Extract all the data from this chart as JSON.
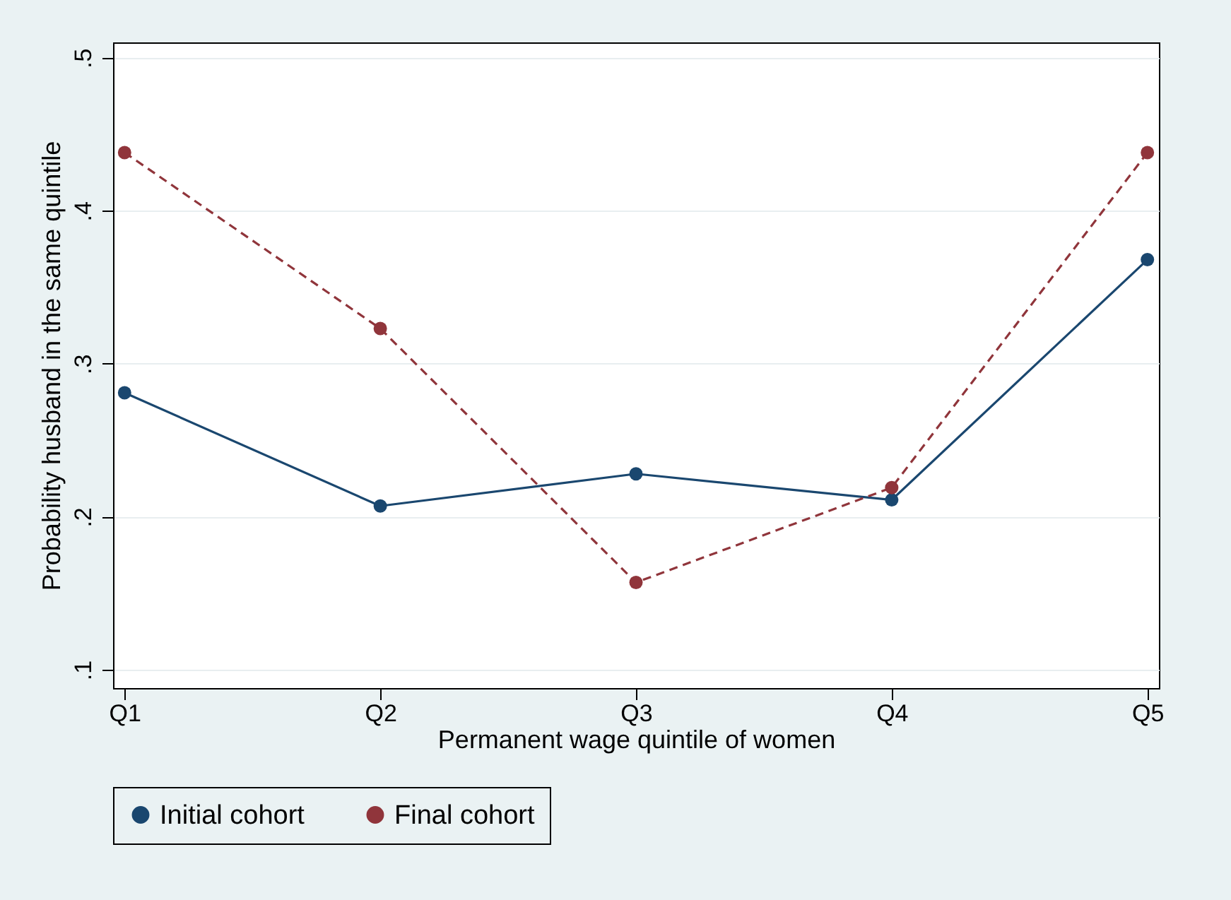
{
  "chart_data": {
    "type": "line",
    "xlabel": "Permanent wage quintile of women",
    "ylabel": "Probability husband in the same quintile",
    "categories": [
      "Q1",
      "Q2",
      "Q3",
      "Q4",
      "Q5"
    ],
    "series": [
      {
        "name": "Initial cohort",
        "color": "#1a476f",
        "values": [
          0.281,
          0.207,
          0.228,
          0.211,
          0.368
        ],
        "line_style": "solid"
      },
      {
        "name": "Final cohort",
        "color": "#90353b",
        "values": [
          0.438,
          0.323,
          0.157,
          0.219,
          0.438
        ],
        "line_style": "dashed"
      }
    ],
    "ylim": [
      0.088,
      0.51
    ],
    "yticks": [
      {
        "value": 0.1,
        "label": ".1"
      },
      {
        "value": 0.2,
        "label": ".2"
      },
      {
        "value": 0.3,
        "label": ".3"
      },
      {
        "value": 0.4,
        "label": ".4"
      },
      {
        "value": 0.5,
        "label": ".5"
      }
    ],
    "grid": "y",
    "legend": "bottom",
    "marker": "circle"
  }
}
